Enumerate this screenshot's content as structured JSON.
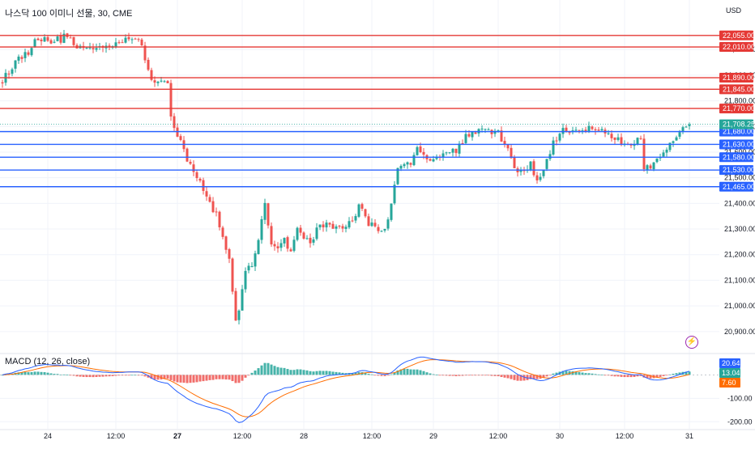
{
  "header": {
    "symbol_title": "나스닥 100 이미니 선물, 30, CME",
    "currency": "USD",
    "macd_label": "MACD (12, 26, close)"
  },
  "icons": {
    "alert": "lightning-icon"
  },
  "colors": {
    "up": "#26a69a",
    "down": "#ef5350",
    "resistance": "#e53935",
    "support": "#2962ff",
    "macd_line": "#2962ff",
    "signal_line": "#ff6d00",
    "hist_up": "#26a69a",
    "hist_down": "#ef5350"
  },
  "chart_data": {
    "type": "candlestick",
    "symbol": "나스닥 100 이미니 선물",
    "interval": "30",
    "exchange": "CME",
    "currency": "USD",
    "price_axis": {
      "ylim": [
        20830,
        22130
      ],
      "ticks": [
        22000,
        21900,
        21800,
        21700,
        21600,
        21500,
        21400,
        21300,
        21200,
        21100,
        21000,
        20900
      ],
      "tick_labels": [
        "22,000.00",
        "21,900.00",
        "21,800.00",
        "21,700.00",
        "21,600.00",
        "21,500.00",
        "21,400.00",
        "21,300.00",
        "21,200.00",
        "21,100.00",
        "21,000.00",
        "20,900.00"
      ]
    },
    "time_axis": {
      "bars": 213,
      "labels": [
        {
          "text": "24",
          "bar": 14
        },
        {
          "text": "12:00",
          "bar": 35
        },
        {
          "text": "27",
          "bar": 54
        },
        {
          "text": "12:00",
          "bar": 74
        },
        {
          "text": "28",
          "bar": 93
        },
        {
          "text": "12:00",
          "bar": 114
        },
        {
          "text": "29",
          "bar": 133
        },
        {
          "text": "12:00",
          "bar": 153
        },
        {
          "text": "30",
          "bar": 172
        },
        {
          "text": "12:00",
          "bar": 192
        },
        {
          "text": "31",
          "bar": 212
        }
      ]
    },
    "resistance_levels": [
      {
        "value": 22055,
        "label": "22,055.00"
      },
      {
        "value": 22010,
        "label": "22,010.00"
      },
      {
        "value": 21890,
        "label": "21,890.00"
      },
      {
        "value": 21845,
        "label": "21,845.00"
      },
      {
        "value": 21770,
        "label": "21,770.00"
      }
    ],
    "support_levels": [
      {
        "value": 21680,
        "label": "21,680.00"
      },
      {
        "value": 21630,
        "label": "21,630.00"
      },
      {
        "value": 21580,
        "label": "21,580.00"
      },
      {
        "value": 21530,
        "label": "21,530.00"
      },
      {
        "value": 21465,
        "label": "21,465.00"
      }
    ],
    "last_price": {
      "value": 21708.25,
      "label": "21,708.25"
    },
    "path": [
      [
        0,
        21880
      ],
      [
        4,
        21955
      ],
      [
        8,
        21990
      ],
      [
        10,
        22050
      ],
      [
        14,
        22030
      ],
      [
        18,
        22040
      ],
      [
        20,
        22060
      ],
      [
        23,
        22010
      ],
      [
        28,
        22000
      ],
      [
        33,
        22020
      ],
      [
        37,
        22040
      ],
      [
        40,
        22050
      ],
      [
        43,
        22010
      ],
      [
        46,
        21880
      ],
      [
        48,
        21870
      ],
      [
        50,
        21890
      ],
      [
        51,
        21870
      ],
      [
        52,
        21740
      ],
      [
        55,
        21640
      ],
      [
        58,
        21540
      ],
      [
        60,
        21510
      ],
      [
        63,
        21420
      ],
      [
        66,
        21360
      ],
      [
        68,
        21270
      ],
      [
        70,
        21180
      ],
      [
        72,
        20930
      ],
      [
        73,
        20990
      ],
      [
        75,
        21130
      ],
      [
        77,
        21170
      ],
      [
        79,
        21250
      ],
      [
        81,
        21400
      ],
      [
        83,
        21250
      ],
      [
        85,
        21230
      ],
      [
        87,
        21270
      ],
      [
        89,
        21200
      ],
      [
        91,
        21300
      ],
      [
        93,
        21270
      ],
      [
        95,
        21250
      ],
      [
        98,
        21320
      ],
      [
        101,
        21310
      ],
      [
        104,
        21305
      ],
      [
        108,
        21330
      ],
      [
        110,
        21390
      ],
      [
        112,
        21340
      ],
      [
        115,
        21300
      ],
      [
        118,
        21295
      ],
      [
        120,
        21400
      ],
      [
        122,
        21550
      ],
      [
        124,
        21560
      ],
      [
        126,
        21540
      ],
      [
        128,
        21610
      ],
      [
        131,
        21575
      ],
      [
        134,
        21590
      ],
      [
        137,
        21600
      ],
      [
        140,
        21605
      ],
      [
        143,
        21670
      ],
      [
        146,
        21680
      ],
      [
        150,
        21690
      ],
      [
        153,
        21670
      ],
      [
        156,
        21600
      ],
      [
        158,
        21540
      ],
      [
        160,
        21530
      ],
      [
        163,
        21550
      ],
      [
        165,
        21480
      ],
      [
        167,
        21530
      ],
      [
        168,
        21565
      ],
      [
        170,
        21640
      ],
      [
        173,
        21680
      ],
      [
        175,
        21690
      ],
      [
        178,
        21680
      ],
      [
        181,
        21700
      ],
      [
        183,
        21675
      ],
      [
        186,
        21680
      ],
      [
        188,
        21660
      ],
      [
        191,
        21640
      ],
      [
        194,
        21625
      ],
      [
        197,
        21660
      ],
      [
        198,
        21530
      ],
      [
        200,
        21540
      ],
      [
        203,
        21590
      ],
      [
        206,
        21640
      ],
      [
        208,
        21660
      ],
      [
        210,
        21690
      ],
      [
        212,
        21708.25
      ]
    ],
    "macd": {
      "name": "MACD (12, 26, close)",
      "ylim": [
        -230,
        60
      ],
      "ticks": [
        -100,
        -200
      ],
      "tick_labels": [
        "-100.00",
        "-200.00"
      ],
      "current": {
        "macd": 20.64,
        "signal": 13.04,
        "histogram": 7.6
      },
      "current_labels": {
        "macd": "20.64",
        "signal": "13.04",
        "histogram": "7.60"
      }
    }
  }
}
